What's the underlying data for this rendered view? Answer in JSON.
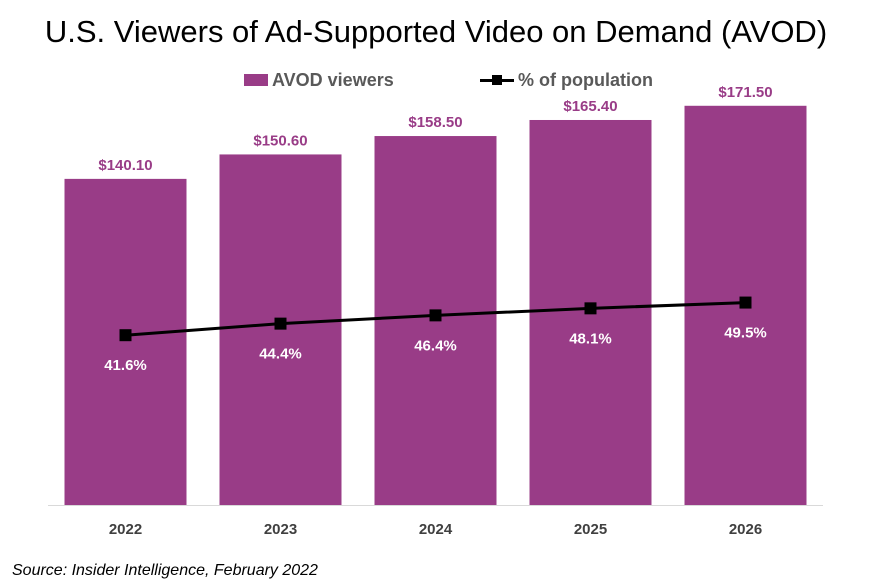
{
  "title": "U.S. Viewers of Ad-Supported Video on Demand (AVOD)",
  "source": "Source: Insider Intelligence, February 2022",
  "colors": {
    "bar": "#993c87",
    "line": "#000000",
    "bar_label": "#993c87",
    "line_label": "#ffffff",
    "axis_text": "#404040",
    "axis_line": "#d9d9d9"
  },
  "chart_data": {
    "type": "bar",
    "categories": [
      "2022",
      "2023",
      "2024",
      "2025",
      "2026"
    ],
    "series": [
      {
        "name": "AVOD viewers",
        "type": "bar",
        "values": [
          140.1,
          150.6,
          158.5,
          165.4,
          171.5
        ],
        "labels": [
          "$140.10",
          "$150.60",
          "$158.50",
          "$165.40",
          "$171.50"
        ]
      },
      {
        "name": "% of population",
        "type": "line",
        "values": [
          41.6,
          44.4,
          46.4,
          48.1,
          49.5
        ],
        "labels": [
          "41.6%",
          "44.4%",
          "46.4%",
          "48.1%",
          "49.5%"
        ]
      }
    ],
    "ylim": [
      0,
      180
    ],
    "y2lim": [
      0,
      100
    ],
    "grid": false,
    "legend_position": "top"
  }
}
